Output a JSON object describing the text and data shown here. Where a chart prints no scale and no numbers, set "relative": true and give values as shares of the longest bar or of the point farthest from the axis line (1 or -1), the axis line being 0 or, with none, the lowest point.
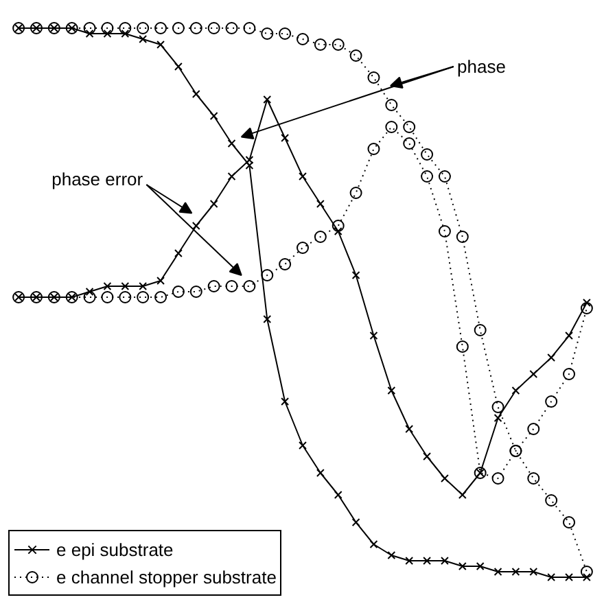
{
  "chart_data": {
    "type": "line",
    "relative": true,
    "categories": [
      null,
      null,
      null,
      null,
      null,
      null,
      null,
      null,
      null,
      null,
      null,
      null,
      null,
      null,
      null,
      null,
      null,
      null,
      null,
      null,
      null,
      null,
      null,
      null,
      null,
      null,
      null,
      null,
      null,
      null,
      null,
      null,
      null
    ],
    "series": [
      {
        "name": "e epi substrate",
        "color": "#000000",
        "marker": "cross",
        "line_style": "solid",
        "values": [
          1.0,
          1.0,
          1.0,
          1.0,
          0.99,
          0.99,
          0.99,
          0.98,
          0.97,
          0.93,
          0.88,
          0.84,
          0.79,
          0.75,
          0.47,
          0.32,
          0.24,
          0.19,
          0.15,
          0.1,
          0.06,
          0.04,
          0.03,
          0.03,
          0.03,
          0.02,
          0.02,
          0.01,
          0.01,
          0.01,
          0.0,
          0.0,
          0.0
        ]
      },
      {
        "color": "#000000",
        "marker": "cross",
        "line_style": "solid",
        "values": [
          0.51,
          0.51,
          0.51,
          0.51,
          0.52,
          0.53,
          0.53,
          0.53,
          0.54,
          0.59,
          0.64,
          0.68,
          0.73,
          0.76,
          0.87,
          0.8,
          0.73,
          0.68,
          0.63,
          0.55,
          0.44,
          0.34,
          0.27,
          0.22,
          0.18,
          0.15,
          0.19,
          0.29,
          0.34,
          0.37,
          0.4,
          0.44,
          0.5
        ]
      },
      {
        "name": "e channel stopper substrate",
        "color": "#000000",
        "marker": "circle",
        "line_style": "dotted",
        "values": [
          1.0,
          1.0,
          1.0,
          1.0,
          1.0,
          1.0,
          1.0,
          1.0,
          1.0,
          1.0,
          1.0,
          1.0,
          1.0,
          1.0,
          0.99,
          0.99,
          0.98,
          0.97,
          0.97,
          0.95,
          0.91,
          0.86,
          0.82,
          0.77,
          0.73,
          0.62,
          0.45,
          0.31,
          0.23,
          0.18,
          0.14,
          0.1,
          0.01
        ]
      },
      {
        "color": "#000000",
        "marker": "circle",
        "line_style": "dotted",
        "values": [
          0.51,
          0.51,
          0.51,
          0.51,
          0.51,
          0.51,
          0.51,
          0.51,
          0.51,
          0.52,
          0.52,
          0.53,
          0.53,
          0.53,
          0.55,
          0.57,
          0.6,
          0.62,
          0.64,
          0.7,
          0.78,
          0.82,
          0.79,
          0.73,
          0.63,
          0.42,
          0.19,
          0.18,
          0.23,
          0.27,
          0.32,
          0.37,
          0.49
        ]
      }
    ],
    "legend": "bottom left",
    "annotations": [
      "phase",
      "phase error"
    ]
  }
}
